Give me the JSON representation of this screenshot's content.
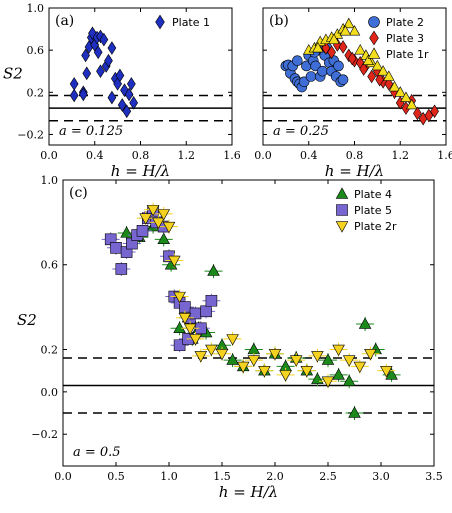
{
  "chart_data": [
    {
      "panel": "(a)",
      "type": "scatter",
      "xlabel": "h = H/λ",
      "ylabel": "S2",
      "xlim": [
        0.0,
        1.6
      ],
      "ylim": [
        -0.3,
        1.0
      ],
      "xticks": [
        "0.0",
        "0.4",
        "0.8",
        "1.2",
        "1.6"
      ],
      "yticks": [
        "1.0",
        "0.6",
        "0.2",
        "−0.2"
      ],
      "annotation": "a = 0.125",
      "hlines": {
        "solid": 0.05,
        "dashed": [
          0.17,
          -0.07
        ]
      },
      "legend": "top-right",
      "series": [
        {
          "name": "Plate 1",
          "marker": "diamond",
          "color": "#1f2fbf",
          "x": [
            0.22,
            0.22,
            0.3,
            0.32,
            0.33,
            0.35,
            0.37,
            0.38,
            0.4,
            0.42,
            0.43,
            0.45,
            0.48,
            0.5,
            0.52,
            0.55,
            0.58,
            0.6,
            0.62,
            0.64,
            0.66,
            0.68,
            0.7,
            0.72,
            0.74,
            0.3,
            0.45,
            0.55
          ],
          "y": [
            0.28,
            0.17,
            0.2,
            0.55,
            0.38,
            0.63,
            0.72,
            0.76,
            0.65,
            0.72,
            0.58,
            0.73,
            0.7,
            0.45,
            0.5,
            0.62,
            0.33,
            0.28,
            0.36,
            0.08,
            0.22,
            0.02,
            0.18,
            0.28,
            0.1,
            0.18,
            0.4,
            0.15
          ]
        }
      ]
    },
    {
      "panel": "(b)",
      "type": "scatter",
      "xlabel": "h = H/λ",
      "ylabel": "",
      "xlim": [
        0.0,
        1.6
      ],
      "ylim": [
        -0.3,
        1.0
      ],
      "xticks": [
        "0.0",
        "0.4",
        "0.8",
        "1.2",
        "1.6"
      ],
      "annotation": "a = 0.25",
      "hlines": {
        "solid": 0.05,
        "dashed": [
          0.17,
          -0.07
        ]
      },
      "legend": "top-right",
      "series": [
        {
          "name": "Plate 2",
          "marker": "circle",
          "color": "#3f6fd6",
          "x": [
            0.2,
            0.22,
            0.24,
            0.26,
            0.28,
            0.3,
            0.32,
            0.34,
            0.36,
            0.38,
            0.4,
            0.42,
            0.44,
            0.46,
            0.48,
            0.5,
            0.52,
            0.54,
            0.56,
            0.58,
            0.6,
            0.62,
            0.64,
            0.66,
            0.68,
            0.7,
            0.3,
            0.45
          ],
          "y": [
            0.45,
            0.46,
            0.38,
            0.45,
            0.33,
            0.3,
            0.28,
            0.25,
            0.3,
            0.45,
            0.55,
            0.35,
            0.5,
            0.45,
            0.6,
            0.35,
            0.4,
            0.55,
            0.62,
            0.48,
            0.4,
            0.5,
            0.35,
            0.45,
            0.3,
            0.32,
            0.5,
            0.58
          ]
        },
        {
          "name": "Plate 3",
          "marker": "diamond",
          "color": "#e0261a",
          "x": [
            0.55,
            0.6,
            0.65,
            0.7,
            0.75,
            0.8,
            0.85,
            0.9,
            0.95,
            1.0,
            1.05,
            1.1,
            1.15,
            1.2,
            1.25,
            1.3,
            1.35,
            1.4,
            1.45,
            1.5,
            0.78,
            0.88,
            1.02
          ],
          "y": [
            0.62,
            0.58,
            0.65,
            0.63,
            0.55,
            0.5,
            0.48,
            0.45,
            0.35,
            0.4,
            0.3,
            0.28,
            0.2,
            0.1,
            0.05,
            0.12,
            0.0,
            -0.05,
            -0.02,
            0.02,
            0.52,
            0.42,
            0.32
          ]
        },
        {
          "name": "Plate 1r",
          "marker": "triangle-up",
          "color": "#f2dd1e",
          "x": [
            0.4,
            0.45,
            0.5,
            0.55,
            0.6,
            0.65,
            0.7,
            0.75,
            0.8,
            0.85,
            0.9,
            0.95,
            1.0,
            1.05,
            1.1,
            1.15,
            1.2,
            1.25,
            1.3,
            0.48,
            0.62,
            0.72,
            0.92
          ],
          "y": [
            0.6,
            0.62,
            0.68,
            0.7,
            0.72,
            0.75,
            0.8,
            0.85,
            0.78,
            0.6,
            0.55,
            0.48,
            0.45,
            0.4,
            0.35,
            0.25,
            0.2,
            0.15,
            0.08,
            0.62,
            0.7,
            0.78,
            0.5
          ]
        }
      ]
    },
    {
      "panel": "(c)",
      "type": "scatter",
      "xlabel": "h = H/λ",
      "ylabel": "S2",
      "xlim": [
        0.0,
        3.5
      ],
      "ylim": [
        -0.35,
        1.0
      ],
      "xticks": [
        "0.0",
        "0.5",
        "1.0",
        "1.5",
        "2.0",
        "2.5",
        "3.0",
        "3.5"
      ],
      "yticks": [
        "1.0",
        "0.6",
        "0.2",
        "0.0",
        "−0.2"
      ],
      "annotation": "a = 0.5",
      "hlines": {
        "solid": 0.03,
        "dashed": [
          0.16,
          -0.1
        ]
      },
      "legend": "top-right",
      "series": [
        {
          "name": "Plate 4",
          "marker": "triangle-up",
          "color": "#1b8a1b",
          "x": [
            0.6,
            0.72,
            0.85,
            0.95,
            1.02,
            1.1,
            1.18,
            1.22,
            1.28,
            1.35,
            1.42,
            1.5,
            1.6,
            1.7,
            1.8,
            1.9,
            2.0,
            2.1,
            2.2,
            2.3,
            2.4,
            2.5,
            2.6,
            2.7,
            2.75,
            2.85,
            2.95,
            3.1
          ],
          "y": [
            0.75,
            0.73,
            0.78,
            0.72,
            0.6,
            0.3,
            0.35,
            0.25,
            0.3,
            0.28,
            0.57,
            0.22,
            0.15,
            0.12,
            0.2,
            0.1,
            0.18,
            0.12,
            0.16,
            0.1,
            0.06,
            0.15,
            0.08,
            0.05,
            -0.1,
            0.32,
            0.2,
            0.08
          ]
        },
        {
          "name": "Plate 5",
          "marker": "square",
          "color": "#7766d0",
          "x": [
            0.45,
            0.5,
            0.55,
            0.6,
            0.65,
            0.7,
            0.75,
            0.8,
            0.85,
            0.88,
            0.95,
            1.0,
            1.05,
            1.1,
            1.15,
            1.2,
            1.25,
            1.3,
            1.35,
            1.4,
            1.1,
            1.18
          ],
          "y": [
            0.72,
            0.68,
            0.58,
            0.66,
            0.7,
            0.74,
            0.76,
            0.82,
            0.85,
            0.8,
            0.78,
            0.64,
            0.45,
            0.42,
            0.4,
            0.35,
            0.37,
            0.3,
            0.38,
            0.43,
            0.22,
            0.25
          ]
        },
        {
          "name": "Plate 2r",
          "marker": "triangle-down",
          "color": "#f4d21f",
          "x": [
            0.78,
            0.85,
            0.9,
            0.95,
            1.0,
            1.05,
            1.1,
            1.15,
            1.2,
            1.25,
            1.3,
            1.4,
            1.5,
            1.6,
            1.7,
            1.8,
            1.9,
            2.0,
            2.1,
            2.2,
            2.3,
            2.4,
            2.5,
            2.6,
            2.7,
            2.8,
            2.9,
            3.05
          ],
          "y": [
            0.82,
            0.86,
            0.8,
            0.84,
            0.78,
            0.62,
            0.45,
            0.35,
            0.3,
            0.25,
            0.17,
            0.2,
            0.18,
            0.25,
            0.12,
            0.15,
            0.1,
            0.18,
            0.08,
            0.15,
            0.1,
            0.17,
            0.05,
            0.2,
            0.15,
            0.12,
            0.18,
            0.1
          ]
        }
      ]
    }
  ]
}
